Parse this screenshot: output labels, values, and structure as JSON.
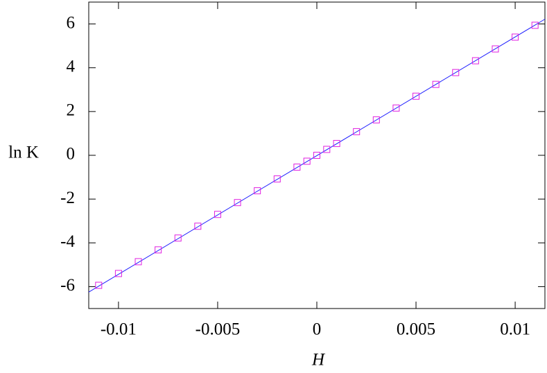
{
  "chart_data": {
    "type": "scatter",
    "xlabel": "H",
    "ylabel": "ln K",
    "x": [
      -0.011,
      -0.01,
      -0.009,
      -0.008,
      -0.007,
      -0.006,
      -0.005,
      -0.004,
      -0.003,
      -0.002,
      -0.001,
      -0.0005,
      0,
      0.0005,
      0.001,
      0.002,
      0.003,
      0.004,
      0.005,
      0.006,
      0.007,
      0.008,
      0.009,
      0.01,
      0.011
    ],
    "values": [
      -5.94,
      -5.4,
      -4.86,
      -4.32,
      -3.78,
      -3.24,
      -2.7,
      -2.16,
      -1.62,
      -1.08,
      -0.54,
      -0.27,
      0,
      0.27,
      0.54,
      1.08,
      1.62,
      2.16,
      2.7,
      3.24,
      3.78,
      4.32,
      4.86,
      5.4,
      5.94
    ],
    "color": "#e020e0",
    "fit": {
      "x": [
        -0.0115,
        0.0115
      ],
      "values": [
        -6.25,
        6.22
      ],
      "color": "#2020ff"
    },
    "xlim": [
      -0.0115,
      0.0115
    ],
    "xticks": [
      -0.01,
      -0.005,
      0,
      0.005,
      0.01
    ],
    "ylim": [
      -7,
      7
    ],
    "yticks": [
      -6,
      -4,
      -2,
      0,
      2,
      4,
      6
    ]
  }
}
